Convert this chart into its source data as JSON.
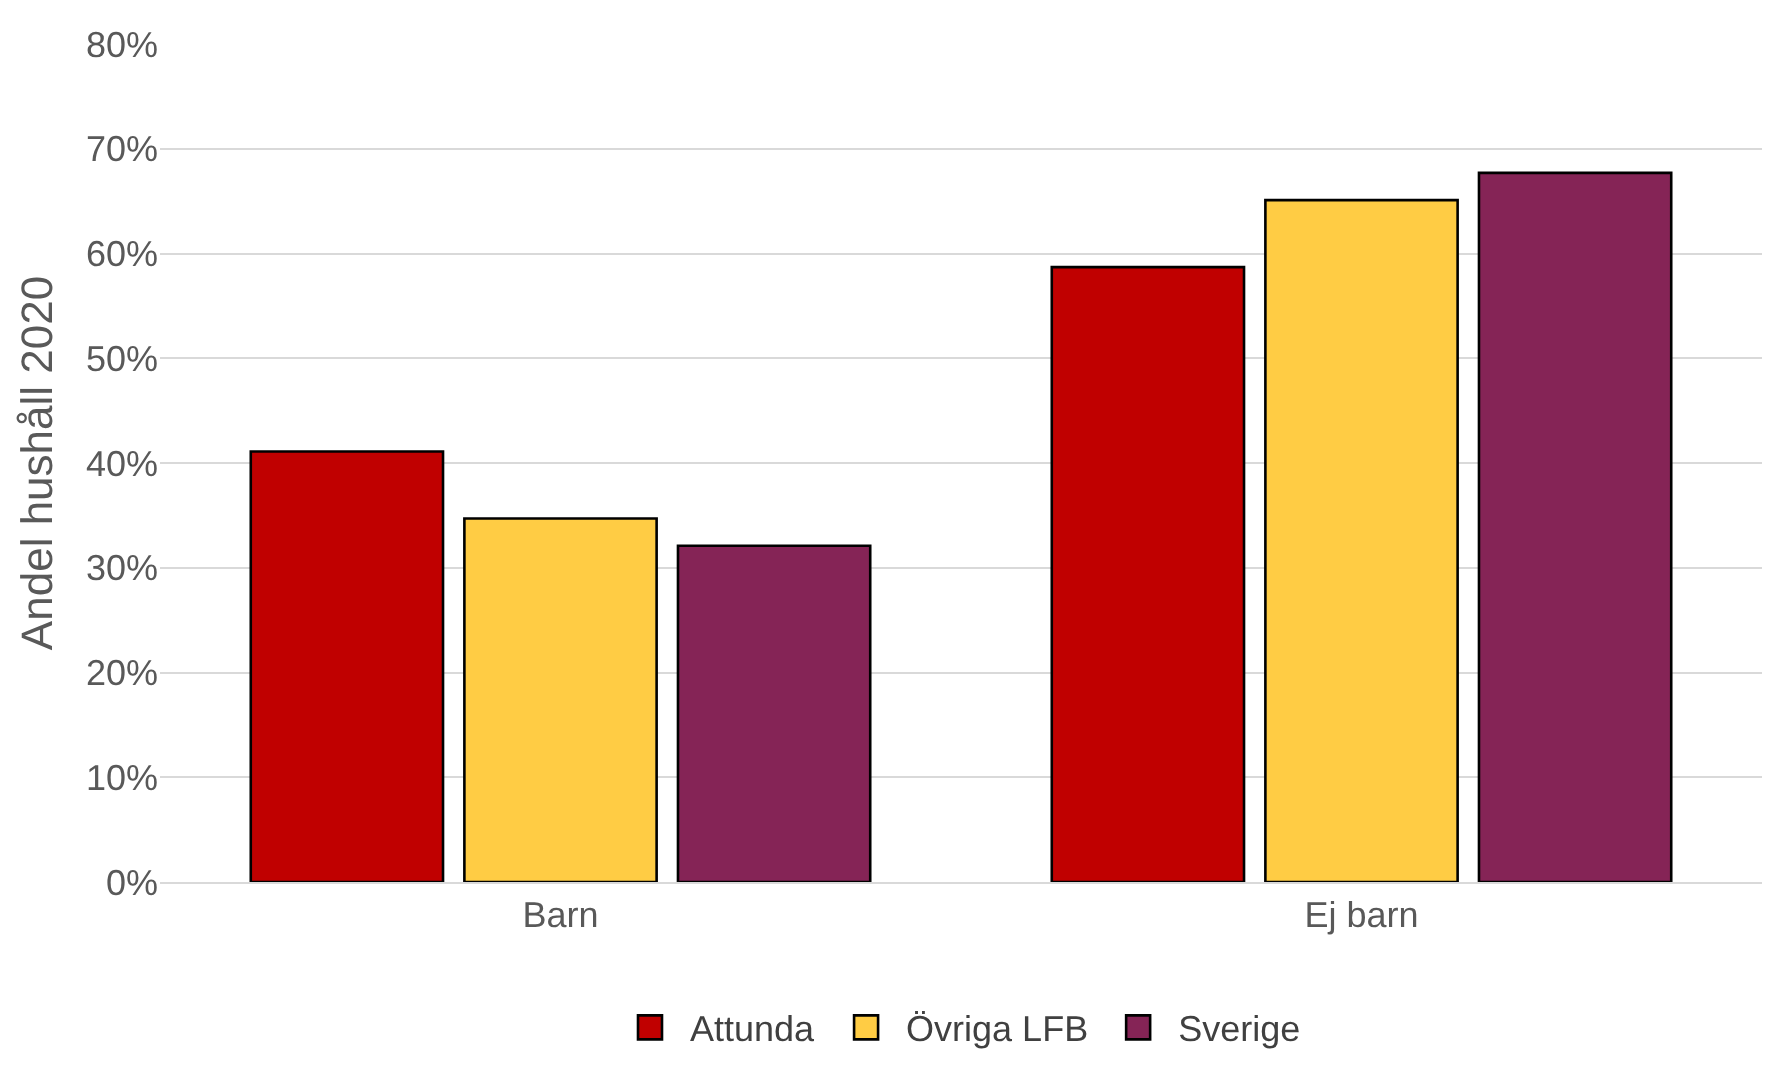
{
  "chart_data": {
    "type": "bar",
    "ylabel": "Andel hushåll 2020",
    "categories": [
      "Barn",
      "Ej barn"
    ],
    "series": [
      {
        "name": "Attunda",
        "color": "#c00000",
        "values": [
          0.411,
          0.587
        ]
      },
      {
        "name": "Övriga LFB",
        "color": "#ffcc44",
        "values": [
          0.347,
          0.651
        ]
      },
      {
        "name": "Sverige",
        "color": "#852456",
        "values": [
          0.321,
          0.677
        ]
      }
    ],
    "ylim": [
      0,
      0.8
    ],
    "yticks": [
      {
        "value": 0,
        "label": "0%"
      },
      {
        "value": 0.1,
        "label": "10%"
      },
      {
        "value": 0.2,
        "label": "20%"
      },
      {
        "value": 0.3,
        "label": "30%"
      },
      {
        "value": 0.4,
        "label": "40%"
      },
      {
        "value": 0.5,
        "label": "50%"
      },
      {
        "value": 0.6,
        "label": "60%"
      },
      {
        "value": 0.7,
        "label": "70%"
      },
      {
        "value": 0.8,
        "label": "80%"
      }
    ],
    "grid": "y",
    "legend": "bottom"
  }
}
